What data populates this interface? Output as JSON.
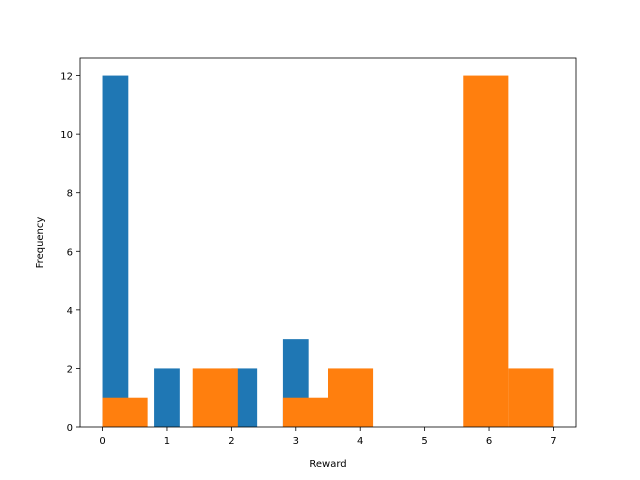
{
  "chart_data": {
    "type": "bar",
    "title": "",
    "xlabel": "Reward",
    "ylabel": "Frequency",
    "xlim": [
      -0.35,
      7.35
    ],
    "ylim": [
      0,
      12.6
    ],
    "xticks": [
      0,
      1,
      2,
      3,
      4,
      5,
      6,
      7
    ],
    "yticks": [
      0,
      2,
      4,
      6,
      8,
      10,
      12
    ],
    "grid": false,
    "legend": "none",
    "series": [
      {
        "color": "#1f77b4",
        "bins": [
          {
            "x0": 0.0,
            "x1": 0.4,
            "count": 12
          },
          {
            "x0": 0.8,
            "x1": 1.2,
            "count": 2
          },
          {
            "x0": 2.0,
            "x1": 2.4,
            "count": 2
          },
          {
            "x0": 2.8,
            "x1": 3.2,
            "count": 3
          }
        ]
      },
      {
        "color": "#ff7f0e",
        "bins": [
          {
            "x0": 0.0,
            "x1": 0.7,
            "count": 1
          },
          {
            "x0": 1.4,
            "x1": 2.1,
            "count": 2
          },
          {
            "x0": 2.8,
            "x1": 3.5,
            "count": 1
          },
          {
            "x0": 3.5,
            "x1": 4.2,
            "count": 2
          },
          {
            "x0": 5.6,
            "x1": 6.3,
            "count": 12
          },
          {
            "x0": 6.3,
            "x1": 7.0,
            "count": 2
          }
        ]
      }
    ]
  }
}
